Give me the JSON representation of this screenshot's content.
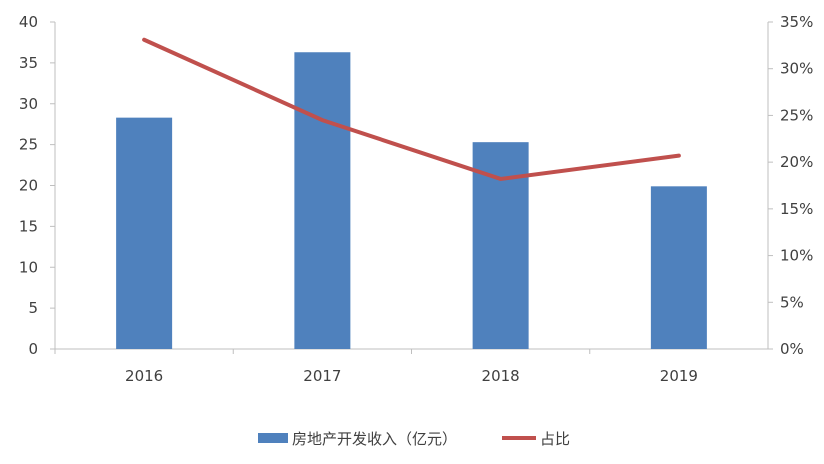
{
  "chart_data": {
    "type": "bar+line",
    "categories": [
      "2016",
      "2017",
      "2018",
      "2019"
    ],
    "series": [
      {
        "name": "房地产开发收入（亿元）",
        "type": "bar",
        "axis": "left",
        "values": [
          28.3,
          36.3,
          25.3,
          19.9
        ],
        "color": "#4F81BD"
      },
      {
        "name": "占比",
        "type": "line",
        "axis": "right",
        "values": [
          33.1,
          24.5,
          18.2,
          20.7
        ],
        "color": "#C0504D"
      }
    ],
    "left_axis": {
      "ylim": [
        0,
        40
      ],
      "ticks": [
        "0",
        "5",
        "10",
        "15",
        "20",
        "25",
        "30",
        "35",
        "40"
      ]
    },
    "right_axis": {
      "ylim": [
        0,
        35
      ],
      "unit": "%",
      "ticks": [
        "0%",
        "5%",
        "10%",
        "15%",
        "20%",
        "25%",
        "30%",
        "35%"
      ]
    },
    "grid": false,
    "legend": "bottom"
  }
}
